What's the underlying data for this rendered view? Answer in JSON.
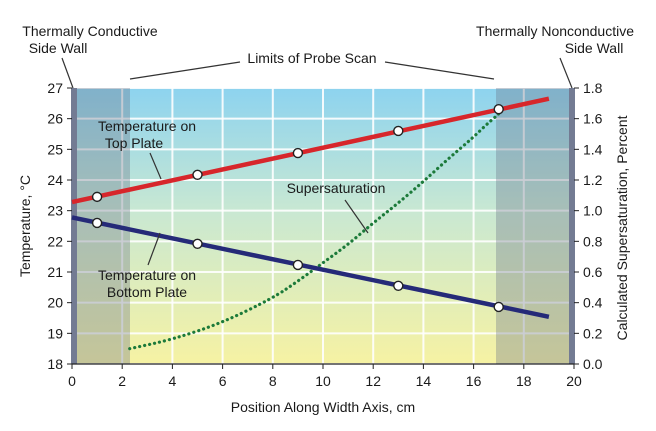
{
  "chart_data": {
    "type": "line",
    "title": "",
    "xlabel": "Position Along Width Axis, cm",
    "ylabel": "Temperature, °C",
    "y2label": "Calculated Supersaturation, Percent",
    "xlim": [
      0,
      20
    ],
    "ylim": [
      18,
      27
    ],
    "y2lim": [
      0.0,
      1.8
    ],
    "x_ticks": [
      "0",
      "2",
      "4",
      "6",
      "8",
      "10",
      "12",
      "14",
      "16",
      "18",
      "20"
    ],
    "y_ticks": [
      "18",
      "19",
      "20",
      "21",
      "22",
      "23",
      "24",
      "25",
      "26",
      "27"
    ],
    "y2_ticks": [
      "0.0",
      "0.2",
      "0.4",
      "0.6",
      "0.8",
      "1.0",
      "1.2",
      "1.4",
      "1.6",
      "1.8"
    ],
    "grid": true,
    "colors": {
      "top_plate": "#d7262b",
      "bottom_plate": "#252a78",
      "supersaturation": "#1c7a3a",
      "sky_top": "#8dd3ef",
      "sky_bottom": "#f6f2a3",
      "wall_shade": "#6b7288"
    },
    "series": [
      {
        "name": "Temperature on Top Plate",
        "axis": "left",
        "line": {
          "x": [
            0,
            19
          ],
          "y": [
            23.28,
            26.65
          ]
        },
        "markers": {
          "x": [
            1,
            5,
            9,
            13,
            17
          ],
          "y": [
            23.45,
            24.17,
            24.88,
            25.6,
            26.31
          ]
        }
      },
      {
        "name": "Temperature on Bottom Plate",
        "axis": "left",
        "line": {
          "x": [
            0,
            19
          ],
          "y": [
            22.78,
            19.54
          ]
        },
        "markers": {
          "x": [
            1,
            5,
            9,
            13,
            17
          ],
          "y": [
            22.6,
            21.92,
            21.23,
            20.55,
            19.86
          ]
        }
      },
      {
        "name": "Supersaturation",
        "axis": "right",
        "style": "dotted",
        "x": [
          2.3,
          4,
          6,
          8,
          9,
          10,
          11,
          12,
          13,
          14,
          15,
          16,
          16.5,
          17,
          17.2
        ],
        "y": [
          0.1,
          0.16,
          0.27,
          0.43,
          0.54,
          0.66,
          0.78,
          0.92,
          1.05,
          1.19,
          1.34,
          1.48,
          1.56,
          1.63,
          1.67
        ]
      }
    ],
    "annotations": {
      "left_wall": [
        "Thermally Conductive",
        "Side Wall"
      ],
      "right_wall": [
        "Thermally Nonconductive",
        "Side Wall"
      ],
      "probe_limits": "Limits of Probe Scan",
      "probe_scan_x": [
        2.3,
        17
      ],
      "top_plate_label": [
        "Temperature on",
        "Top Plate"
      ],
      "bottom_plate_label": [
        "Temperature on",
        "Bottom Plate"
      ],
      "supersat_label": "Supersaturation"
    }
  }
}
